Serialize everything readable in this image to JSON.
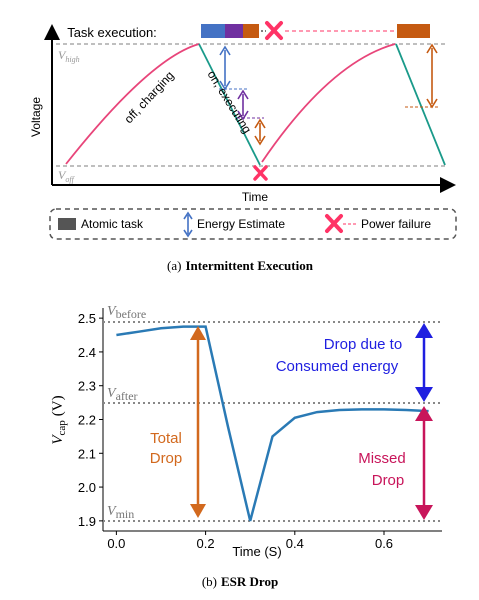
{
  "panel_a": {
    "task_execution_label": "Task execution:",
    "v_high": "V",
    "v_high_sub": "high",
    "v_off": "V",
    "v_off_sub": "off",
    "y_axis_label": "Voltage",
    "x_axis_label": "Time",
    "charging_label": "off, charging",
    "executing_label": "on, executing",
    "legend": {
      "atomic_task": "Atomic task",
      "energy_estimate": "Energy Estimate",
      "power_failure": "Power failure"
    },
    "caption_prefix": "(a)",
    "caption_title": "Intermittent Execution"
  },
  "panel_b": {
    "y_axis_label_main": "V",
    "y_axis_label_sub": "cap",
    "y_axis_unit": "(V)",
    "x_axis_label": "Time (S)",
    "v_before": "V",
    "v_before_sub": "before",
    "v_after": "V",
    "v_after_sub": "after",
    "v_min": "V",
    "v_min_sub": "min",
    "drop_consumed_line1": "Drop due to",
    "drop_consumed_line2": "Consumed energy",
    "total_drop_line1": "Total",
    "total_drop_line2": "Drop",
    "missed_drop_line1": "Missed",
    "missed_drop_line2": "Drop",
    "caption_prefix": "(b)",
    "caption_title": "ESR Drop",
    "colors": {
      "curve": "#2a7ab5",
      "blue": "#1f1fe0",
      "orange": "#d2691e",
      "crimson": "#c8155a"
    }
  },
  "chart_data": {
    "type": "line",
    "x": [
      0.0,
      0.05,
      0.1,
      0.15,
      0.2,
      0.2,
      0.25,
      0.3,
      0.3,
      0.35,
      0.4,
      0.45,
      0.5,
      0.55,
      0.6,
      0.65,
      0.7
    ],
    "y": [
      2.45,
      2.46,
      2.47,
      2.475,
      2.475,
      2.475,
      2.18,
      1.9,
      1.9,
      2.15,
      2.205,
      2.222,
      2.228,
      2.23,
      2.23,
      2.228,
      2.225
    ],
    "xlabel": "Time (S)",
    "ylabel": "Vcap (V)",
    "xticks": [
      "0.0",
      "0.2",
      "0.4",
      "0.6"
    ],
    "yticks": [
      "1.9",
      "2.0",
      "2.1",
      "2.2",
      "2.3",
      "2.4",
      "2.5"
    ],
    "xlim": [
      -0.03,
      0.73
    ],
    "ylim": [
      1.87,
      2.53
    ],
    "grid": false
  }
}
